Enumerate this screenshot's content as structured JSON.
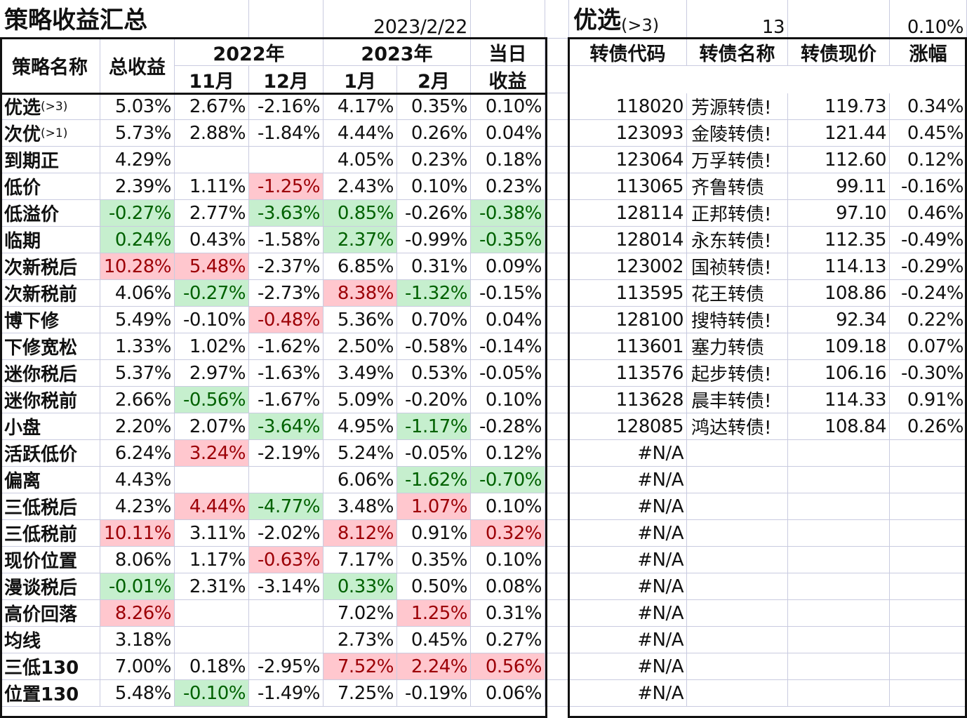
{
  "left": {
    "title": "策略收益汇总",
    "date": "2023/2/22",
    "headers": {
      "name": "策略名称",
      "total": "总收益",
      "year2022": "2022年",
      "year2023": "2023年",
      "nov": "11月",
      "dec": "12月",
      "jan": "1月",
      "feb": "2月",
      "day1": "当日",
      "day2": "收益"
    },
    "rows": [
      {
        "name": "优选",
        "suffix": "(>3)",
        "total": "5.03%",
        "nov": "2.67%",
        "dec": "-2.16%",
        "jan": "4.17%",
        "feb": "0.35%",
        "day": "0.10%"
      },
      {
        "name": "次优",
        "suffix": "(>1)",
        "total": "5.73%",
        "nov": "2.88%",
        "dec": "-1.84%",
        "jan": "4.44%",
        "feb": "0.26%",
        "day": "0.04%"
      },
      {
        "name": "到期正",
        "suffix": "",
        "total": "4.29%",
        "nov": "",
        "dec": "",
        "jan": "4.05%",
        "feb": "0.23%",
        "day": "0.18%"
      },
      {
        "name": "低价",
        "suffix": "",
        "total": "2.39%",
        "nov": "1.11%",
        "dec": "-1.25%",
        "jan": "2.43%",
        "feb": "0.10%",
        "day": "0.23%"
      },
      {
        "name": "低溢价",
        "suffix": "",
        "total": "-0.27%",
        "nov": "2.77%",
        "dec": "-3.63%",
        "jan": "0.85%",
        "feb": "-0.26%",
        "day": "-0.38%"
      },
      {
        "name": "临期",
        "suffix": "",
        "total": "0.24%",
        "nov": "0.43%",
        "dec": "-1.58%",
        "jan": "2.37%",
        "feb": "-0.99%",
        "day": "-0.35%"
      },
      {
        "name": "次新税后",
        "suffix": "",
        "total": "10.28%",
        "nov": "5.48%",
        "dec": "-2.37%",
        "jan": "6.85%",
        "feb": "0.31%",
        "day": "0.09%"
      },
      {
        "name": "次新税前",
        "suffix": "",
        "total": "4.06%",
        "nov": "-0.27%",
        "dec": "-2.73%",
        "jan": "8.38%",
        "feb": "-1.32%",
        "day": "-0.15%"
      },
      {
        "name": "博下修",
        "suffix": "",
        "total": "5.49%",
        "nov": "-0.10%",
        "dec": "-0.48%",
        "jan": "5.36%",
        "feb": "0.70%",
        "day": "0.04%"
      },
      {
        "name": "下修宽松",
        "suffix": "",
        "total": "1.33%",
        "nov": "1.02%",
        "dec": "-1.62%",
        "jan": "2.50%",
        "feb": "-0.58%",
        "day": "-0.14%"
      },
      {
        "name": "迷你税后",
        "suffix": "",
        "total": "5.37%",
        "nov": "2.97%",
        "dec": "-1.63%",
        "jan": "3.49%",
        "feb": "0.53%",
        "day": "-0.05%"
      },
      {
        "name": "迷你税前",
        "suffix": "",
        "total": "2.66%",
        "nov": "-0.56%",
        "dec": "-1.67%",
        "jan": "5.09%",
        "feb": "-0.20%",
        "day": "0.10%"
      },
      {
        "name": "小盘",
        "suffix": "",
        "total": "2.20%",
        "nov": "2.07%",
        "dec": "-3.64%",
        "jan": "4.95%",
        "feb": "-1.17%",
        "day": "-0.28%"
      },
      {
        "name": "活跃低价",
        "suffix": "",
        "total": "6.24%",
        "nov": "3.24%",
        "dec": "-2.19%",
        "jan": "5.24%",
        "feb": "-0.05%",
        "day": "0.12%"
      },
      {
        "name": "偏离",
        "suffix": "",
        "total": "4.43%",
        "nov": "",
        "dec": "",
        "jan": "6.06%",
        "feb": "-1.62%",
        "day": "-0.70%"
      },
      {
        "name": "三低税后",
        "suffix": "",
        "total": "4.23%",
        "nov": "4.44%",
        "dec": "-4.77%",
        "jan": "3.48%",
        "feb": "1.07%",
        "day": "0.10%"
      },
      {
        "name": "三低税前",
        "suffix": "",
        "total": "10.11%",
        "nov": "3.11%",
        "dec": "-2.02%",
        "jan": "8.12%",
        "feb": "0.91%",
        "day": "0.32%"
      },
      {
        "name": "现价位置",
        "suffix": "",
        "total": "8.06%",
        "nov": "1.17%",
        "dec": "-0.63%",
        "jan": "7.17%",
        "feb": "0.35%",
        "day": "0.10%"
      },
      {
        "name": "漫谈税后",
        "suffix": "",
        "total": "-0.01%",
        "nov": "2.31%",
        "dec": "-3.14%",
        "jan": "0.33%",
        "feb": "0.50%",
        "day": "0.08%"
      },
      {
        "name": "高价回落",
        "suffix": "",
        "total": "8.26%",
        "nov": "",
        "dec": "",
        "jan": "7.02%",
        "feb": "1.25%",
        "day": "0.31%"
      },
      {
        "name": "均线",
        "suffix": "",
        "total": "3.18%",
        "nov": "",
        "dec": "",
        "jan": "2.73%",
        "feb": "0.45%",
        "day": "0.27%"
      },
      {
        "name": "三低130",
        "suffix": "",
        "total": "7.00%",
        "nov": "0.18%",
        "dec": "-2.95%",
        "jan": "7.52%",
        "feb": "2.24%",
        "day": "0.56%"
      },
      {
        "name": "位置130",
        "suffix": "",
        "total": "5.48%",
        "nov": "-0.10%",
        "dec": "-1.49%",
        "jan": "7.25%",
        "feb": "-0.19%",
        "day": "0.06%"
      }
    ],
    "highlights": {
      "pos": [
        "3.dec",
        "6.total",
        "6.nov",
        "7.jan",
        "8.dec",
        "13.nov",
        "15.nov",
        "15.feb",
        "16.total",
        "16.jan",
        "16.day",
        "17.dec",
        "19.total",
        "19.feb",
        "21.jan",
        "21.feb",
        "21.day"
      ],
      "neg": [
        "4.total",
        "4.dec",
        "4.jan",
        "4.day",
        "5.total",
        "5.jan",
        "5.day",
        "7.nov",
        "7.feb",
        "11.nov",
        "12.dec",
        "12.feb",
        "14.feb",
        "14.day",
        "15.dec",
        "18.total",
        "18.jan",
        "22.nov"
      ]
    }
  },
  "right": {
    "title": "优选",
    "title_suffix": "(>3)",
    "count": "13",
    "avg_change": "0.10%",
    "headers": {
      "code": "转债代码",
      "name": "转债名称",
      "price": "转债现价",
      "change": "涨幅"
    },
    "rows": [
      {
        "code": "118020",
        "name": "芳源转债!",
        "price": "119.73",
        "change": "0.34%"
      },
      {
        "code": "123093",
        "name": "金陵转债!",
        "price": "121.44",
        "change": "0.45%"
      },
      {
        "code": "123064",
        "name": "万孚转债!",
        "price": "112.60",
        "change": "0.12%"
      },
      {
        "code": "113065",
        "name": "齐鲁转债",
        "price": "99.11",
        "change": "-0.16%"
      },
      {
        "code": "128114",
        "name": "正邦转债!",
        "price": "97.10",
        "change": "0.46%"
      },
      {
        "code": "128014",
        "name": "永东转债!",
        "price": "112.35",
        "change": "-0.49%"
      },
      {
        "code": "123002",
        "name": "国祯转债!",
        "price": "114.13",
        "change": "-0.29%"
      },
      {
        "code": "113595",
        "name": "花王转债",
        "price": "108.86",
        "change": "-0.24%"
      },
      {
        "code": "128100",
        "name": "搜特转债!",
        "price": "92.34",
        "change": "0.22%"
      },
      {
        "code": "113601",
        "name": "塞力转债",
        "price": "109.18",
        "change": "0.07%"
      },
      {
        "code": "113576",
        "name": "起步转债!",
        "price": "106.16",
        "change": "-0.30%"
      },
      {
        "code": "113628",
        "name": "晨丰转债!",
        "price": "114.33",
        "change": "0.91%"
      },
      {
        "code": "128085",
        "name": "鸿达转债!",
        "price": "108.84",
        "change": "0.26%"
      },
      {
        "code": "#N/A",
        "name": "",
        "price": "",
        "change": ""
      },
      {
        "code": "#N/A",
        "name": "",
        "price": "",
        "change": ""
      },
      {
        "code": "#N/A",
        "name": "",
        "price": "",
        "change": ""
      },
      {
        "code": "#N/A",
        "name": "",
        "price": "",
        "change": ""
      },
      {
        "code": "#N/A",
        "name": "",
        "price": "",
        "change": ""
      },
      {
        "code": "#N/A",
        "name": "",
        "price": "",
        "change": ""
      },
      {
        "code": "#N/A",
        "name": "",
        "price": "",
        "change": ""
      },
      {
        "code": "#N/A",
        "name": "",
        "price": "",
        "change": ""
      },
      {
        "code": "#N/A",
        "name": "",
        "price": "",
        "change": ""
      },
      {
        "code": "#N/A",
        "name": "",
        "price": "",
        "change": ""
      }
    ]
  },
  "colors": {
    "pos_bg": "#ffc7ce",
    "pos_text": "#9c0006",
    "neg_bg": "#c6efce",
    "neg_text": "#006100",
    "grid": "#c9cbe0",
    "border": "#111111"
  }
}
